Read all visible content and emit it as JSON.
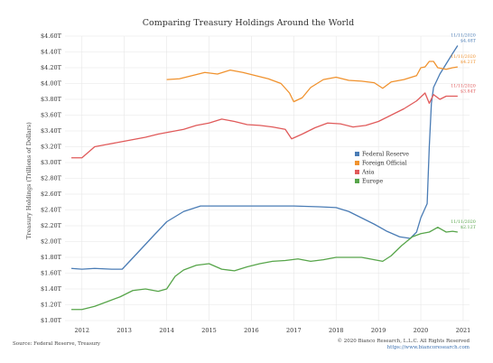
{
  "chart_data": {
    "type": "line",
    "title": "Comparing Treasury Holdings Around the World",
    "xlabel": "",
    "ylabel": "Treasury Holdings (Trillions of Dollars)",
    "ylim": [
      1.0,
      4.6
    ],
    "xlim": [
      2011.6,
      2021.15
    ],
    "y_ticks": [
      1.0,
      1.2,
      1.4,
      1.6,
      1.8,
      2.0,
      2.2,
      2.4,
      2.6,
      2.8,
      3.0,
      3.2,
      3.4,
      3.6,
      3.8,
      4.0,
      4.2,
      4.4,
      4.6
    ],
    "y_tick_labels": [
      "$1.00T",
      "$1.20T",
      "$1.40T",
      "$1.60T",
      "$1.80T",
      "$2.00T",
      "$2.20T",
      "$2.40T",
      "$2.60T",
      "$2.80T",
      "$3.00T",
      "$3.20T",
      "$3.40T",
      "$3.60T",
      "$3.80T",
      "$4.00T",
      "$4.20T",
      "$4.40T",
      "$4.60T"
    ],
    "x_ticks": [
      2012,
      2013,
      2014,
      2015,
      2016,
      2017,
      2018,
      2019,
      2020,
      2021
    ],
    "x_tick_labels": [
      "2012",
      "2013",
      "2014",
      "2015",
      "2016",
      "2017",
      "2018",
      "2019",
      "2020",
      "2021"
    ],
    "grid": true,
    "legend_position": "center-right",
    "series": [
      {
        "name": "Federal Reserve",
        "color": "#4a7cb5",
        "x": [
          2011.75,
          2012.0,
          2012.3,
          2012.7,
          2012.95,
          2013.3,
          2013.7,
          2014.0,
          2014.4,
          2014.8,
          2015.2,
          2015.8,
          2016.5,
          2017.0,
          2017.6,
          2018.0,
          2018.3,
          2018.6,
          2018.9,
          2019.2,
          2019.5,
          2019.75,
          2019.9,
          2020.0,
          2020.15,
          2020.2,
          2020.25,
          2020.3,
          2020.45,
          2020.6,
          2020.75,
          2020.87
        ],
        "y": [
          1.66,
          1.65,
          1.66,
          1.65,
          1.65,
          1.85,
          2.08,
          2.25,
          2.38,
          2.45,
          2.45,
          2.45,
          2.45,
          2.45,
          2.44,
          2.43,
          2.38,
          2.3,
          2.22,
          2.13,
          2.06,
          2.04,
          2.12,
          2.3,
          2.48,
          3.2,
          3.75,
          3.95,
          4.12,
          4.25,
          4.38,
          4.48
        ]
      },
      {
        "name": "Foreign Official",
        "color": "#f0922e",
        "x": [
          2014.0,
          2014.3,
          2014.6,
          2014.9,
          2015.2,
          2015.5,
          2015.8,
          2016.1,
          2016.4,
          2016.7,
          2016.9,
          2017.0,
          2017.2,
          2017.4,
          2017.7,
          2018.0,
          2018.3,
          2018.6,
          2018.9,
          2019.1,
          2019.3,
          2019.6,
          2019.9,
          2020.0,
          2020.1,
          2020.2,
          2020.3,
          2020.4,
          2020.6,
          2020.75,
          2020.87
        ],
        "y": [
          4.05,
          4.06,
          4.1,
          4.14,
          4.12,
          4.17,
          4.14,
          4.1,
          4.06,
          4.0,
          3.88,
          3.77,
          3.82,
          3.95,
          4.05,
          4.08,
          4.04,
          4.03,
          4.01,
          3.94,
          4.02,
          4.05,
          4.1,
          4.2,
          4.21,
          4.28,
          4.28,
          4.2,
          4.18,
          4.2,
          4.21
        ]
      },
      {
        "name": "Asia",
        "color": "#e05a5a",
        "x": [
          2011.75,
          2012.0,
          2012.3,
          2012.6,
          2012.9,
          2013.2,
          2013.5,
          2013.8,
          2014.1,
          2014.4,
          2014.7,
          2015.0,
          2015.3,
          2015.6,
          2015.9,
          2016.2,
          2016.5,
          2016.8,
          2016.95,
          2017.2,
          2017.5,
          2017.8,
          2018.1,
          2018.4,
          2018.7,
          2019.0,
          2019.3,
          2019.6,
          2019.9,
          2020.1,
          2020.2,
          2020.3,
          2020.45,
          2020.6,
          2020.75,
          2020.87
        ],
        "y": [
          3.06,
          3.06,
          3.2,
          3.23,
          3.26,
          3.29,
          3.32,
          3.36,
          3.39,
          3.42,
          3.47,
          3.5,
          3.55,
          3.52,
          3.48,
          3.47,
          3.45,
          3.42,
          3.3,
          3.36,
          3.44,
          3.5,
          3.49,
          3.45,
          3.47,
          3.52,
          3.6,
          3.68,
          3.78,
          3.88,
          3.75,
          3.86,
          3.8,
          3.84,
          3.84,
          3.84
        ]
      },
      {
        "name": "Europe",
        "color": "#57a54a",
        "x": [
          2011.75,
          2012.0,
          2012.3,
          2012.6,
          2012.9,
          2013.2,
          2013.5,
          2013.8,
          2014.0,
          2014.2,
          2014.4,
          2014.7,
          2015.0,
          2015.3,
          2015.6,
          2015.9,
          2016.2,
          2016.5,
          2016.8,
          2017.1,
          2017.4,
          2017.7,
          2018.0,
          2018.3,
          2018.6,
          2018.9,
          2019.1,
          2019.3,
          2019.55,
          2019.8,
          2020.0,
          2020.2,
          2020.4,
          2020.6,
          2020.75,
          2020.87
        ],
        "y": [
          1.14,
          1.14,
          1.18,
          1.24,
          1.3,
          1.38,
          1.4,
          1.37,
          1.4,
          1.56,
          1.64,
          1.7,
          1.72,
          1.65,
          1.63,
          1.68,
          1.72,
          1.75,
          1.76,
          1.78,
          1.75,
          1.77,
          1.8,
          1.8,
          1.8,
          1.77,
          1.75,
          1.82,
          1.95,
          2.06,
          2.1,
          2.12,
          2.18,
          2.12,
          2.13,
          2.12
        ]
      }
    ],
    "annotations": [
      {
        "series": "Federal Reserve",
        "date": "11/11/2020",
        "value": "$4.48T",
        "color": "#4a7cb5"
      },
      {
        "series": "Foreign Official",
        "date": "11/11/2020",
        "value": "$4.21T",
        "color": "#f0922e"
      },
      {
        "series": "Asia",
        "date": "11/11/2020",
        "value": "$3.84T",
        "color": "#e05a5a"
      },
      {
        "series": "Europe",
        "date": "11/11/2020",
        "value": "$2.12T",
        "color": "#57a54a"
      }
    ]
  },
  "footer": {
    "source": "Source: Federal Reserve, Treasury",
    "copyright": "© 2020 Bianco Research, L.L.C. All Rights Reserved",
    "url": "https://www.biancoresearch.com"
  }
}
